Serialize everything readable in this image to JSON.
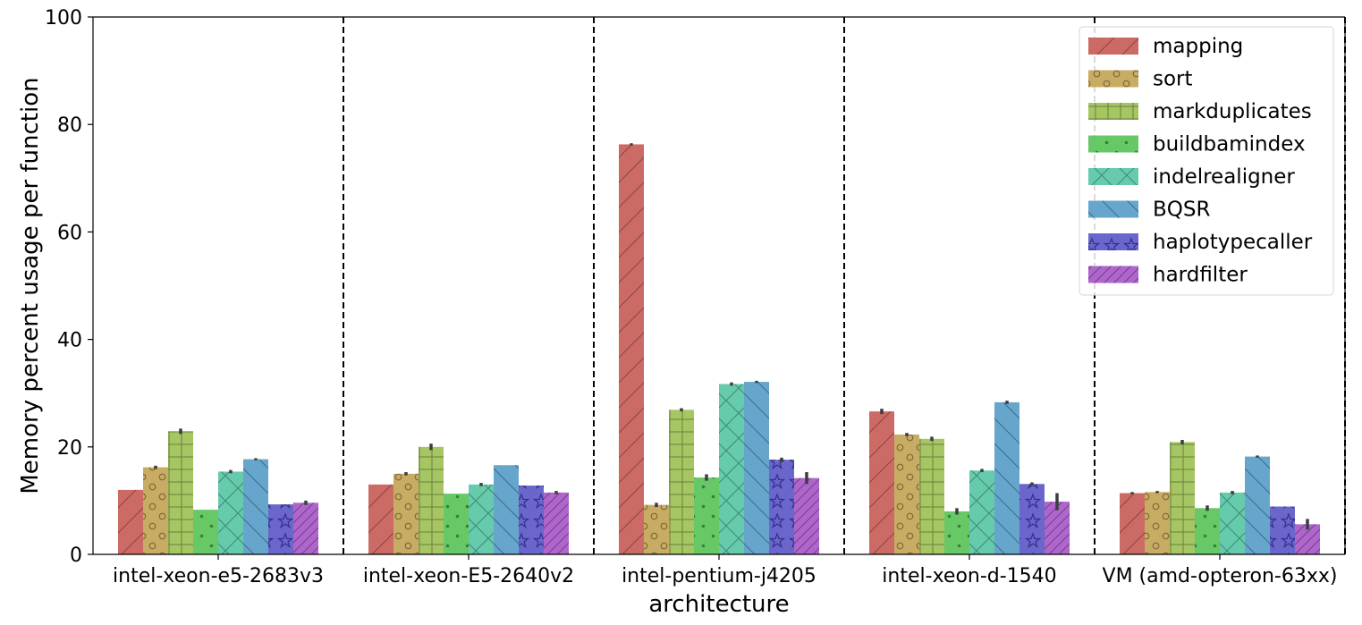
{
  "chart_data": {
    "type": "bar",
    "title": "",
    "xlabel": "architecture",
    "ylabel": "Memory percent usage per function",
    "ylim": [
      0,
      100
    ],
    "yticks": [
      0,
      20,
      40,
      60,
      80,
      100
    ],
    "grid": false,
    "legend_position": "top-right",
    "group_separators": "dashed vertical lines between architectures",
    "categories": [
      "intel-xeon-e5-2683v3",
      "intel-xeon-E5-2640v2",
      "intel-pentium-j4205",
      "intel-xeon-d-1540",
      "VM (amd-opteron-63xx)"
    ],
    "series": [
      {
        "name": "mapping",
        "color": "#cc6b66",
        "pattern": "diagonal",
        "values": [
          12.0,
          13.0,
          76.3,
          26.6,
          11.4
        ],
        "errors": [
          0,
          0,
          0.2,
          0.5,
          0.2
        ]
      },
      {
        "name": "sort",
        "color": "#c9ac63",
        "pattern": "circles",
        "values": [
          16.2,
          15.0,
          9.2,
          22.3,
          11.6
        ],
        "errors": [
          0.3,
          0.3,
          0.4,
          0.3,
          0.2
        ]
      },
      {
        "name": "markduplicates",
        "color": "#a6c663",
        "pattern": "grid",
        "values": [
          22.9,
          20.0,
          26.9,
          21.5,
          20.9
        ],
        "errors": [
          0.5,
          0.6,
          0.3,
          0.4,
          0.4
        ]
      },
      {
        "name": "buildbamindex",
        "color": "#66c966",
        "pattern": "dots",
        "values": [
          8.3,
          11.3,
          14.3,
          8.0,
          8.6
        ],
        "errors": [
          0,
          0,
          0.6,
          0.6,
          0.5
        ]
      },
      {
        "name": "indelrealigner",
        "color": "#66caad",
        "pattern": "crosshatch",
        "values": [
          15.4,
          13.0,
          31.7,
          15.6,
          11.5
        ],
        "errors": [
          0.3,
          0.3,
          0.3,
          0.3,
          0.3
        ]
      },
      {
        "name": "BQSR",
        "color": "#66a6cc",
        "pattern": "backslash",
        "values": [
          17.7,
          16.6,
          32.1,
          28.3,
          18.2
        ],
        "errors": [
          0.2,
          0,
          0.2,
          0.3,
          0.2
        ]
      },
      {
        "name": "haplotypecaller",
        "color": "#6b66cc",
        "pattern": "stars",
        "values": [
          9.3,
          12.8,
          17.6,
          13.1,
          8.9
        ],
        "errors": [
          0,
          0,
          0.4,
          0.3,
          0
        ]
      },
      {
        "name": "hardfilter",
        "color": "#ae66cc",
        "pattern": "dense-diagonal",
        "values": [
          9.6,
          11.5,
          14.2,
          9.8,
          5.6
        ],
        "errors": [
          0.4,
          0.3,
          1.1,
          1.6,
          1.0
        ]
      }
    ]
  }
}
